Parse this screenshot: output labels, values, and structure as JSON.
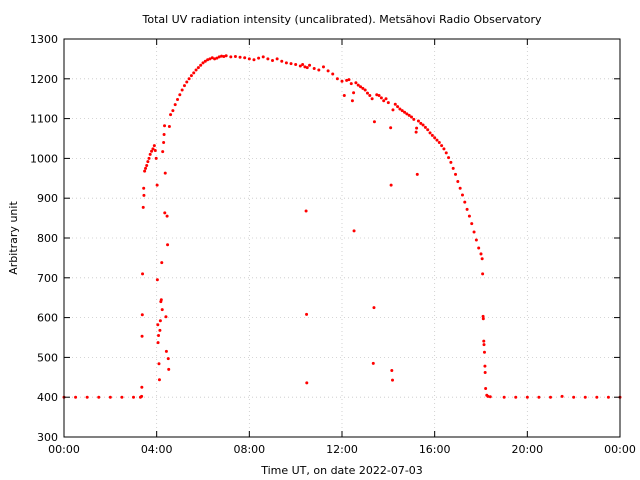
{
  "chart_data": {
    "type": "scatter",
    "title": "Total UV radiation intensity (uncalibrated). Metsähovi Radio Observatory",
    "xlabel": "Time UT, on date 2022-07-03",
    "ylabel": "Arbitrary unit",
    "xlim": [
      0,
      24
    ],
    "ylim": [
      300,
      1300
    ],
    "x_ticks": [
      {
        "value": 0,
        "label": "00:00"
      },
      {
        "value": 4,
        "label": "04:00"
      },
      {
        "value": 8,
        "label": "08:00"
      },
      {
        "value": 12,
        "label": "12:00"
      },
      {
        "value": 16,
        "label": "16:00"
      },
      {
        "value": 20,
        "label": "20:00"
      },
      {
        "value": 24,
        "label": "00:00"
      }
    ],
    "y_ticks": [
      300,
      400,
      500,
      600,
      700,
      800,
      900,
      1000,
      1100,
      1200,
      1300
    ],
    "grid": true,
    "point_color": "#ff0000",
    "x_units": "hours UT",
    "series": [
      {
        "points": [
          [
            0.0,
            400
          ],
          [
            0.5,
            400
          ],
          [
            1.0,
            400
          ],
          [
            1.5,
            400
          ],
          [
            2.0,
            400
          ],
          [
            2.5,
            400
          ],
          [
            3.0,
            400
          ],
          [
            3.3,
            400
          ],
          [
            3.35,
            402
          ],
          [
            3.36,
            425
          ],
          [
            3.37,
            553
          ],
          [
            3.38,
            607
          ],
          [
            3.39,
            710
          ],
          [
            3.42,
            877
          ],
          [
            3.44,
            925
          ],
          [
            3.45,
            907
          ],
          [
            3.48,
            968
          ],
          [
            3.52,
            975
          ],
          [
            3.57,
            982
          ],
          [
            3.62,
            992
          ],
          [
            3.67,
            1000
          ],
          [
            3.72,
            1010
          ],
          [
            3.78,
            1018
          ],
          [
            3.84,
            1024
          ],
          [
            3.9,
            1032
          ],
          [
            3.94,
            1020
          ],
          [
            3.98,
            1000
          ],
          [
            4.02,
            933
          ],
          [
            4.03,
            695
          ],
          [
            4.05,
            582
          ],
          [
            4.06,
            537
          ],
          [
            4.08,
            555
          ],
          [
            4.1,
            484
          ],
          [
            4.12,
            444
          ],
          [
            4.14,
            568
          ],
          [
            4.16,
            592
          ],
          [
            4.18,
            640
          ],
          [
            4.2,
            645
          ],
          [
            4.22,
            738
          ],
          [
            4.24,
            620
          ],
          [
            4.26,
            1017
          ],
          [
            4.3,
            1040
          ],
          [
            4.32,
            1060
          ],
          [
            4.34,
            1082
          ],
          [
            4.35,
            863
          ],
          [
            4.37,
            963
          ],
          [
            4.4,
            602
          ],
          [
            4.42,
            515
          ],
          [
            4.45,
            855
          ],
          [
            4.47,
            783
          ],
          [
            4.5,
            497
          ],
          [
            4.52,
            470
          ],
          [
            4.55,
            1080
          ],
          [
            4.6,
            1110
          ],
          [
            4.7,
            1120
          ],
          [
            4.8,
            1135
          ],
          [
            4.9,
            1148
          ],
          [
            5.0,
            1160
          ],
          [
            5.1,
            1172
          ],
          [
            5.2,
            1183
          ],
          [
            5.3,
            1192
          ],
          [
            5.4,
            1200
          ],
          [
            5.5,
            1208
          ],
          [
            5.6,
            1215
          ],
          [
            5.7,
            1222
          ],
          [
            5.8,
            1228
          ],
          [
            5.9,
            1234
          ],
          [
            6.0,
            1240
          ],
          [
            6.1,
            1244
          ],
          [
            6.2,
            1248
          ],
          [
            6.3,
            1250
          ],
          [
            6.4,
            1253
          ],
          [
            6.5,
            1250
          ],
          [
            6.6,
            1252
          ],
          [
            6.7,
            1255
          ],
          [
            6.8,
            1257
          ],
          [
            6.9,
            1256
          ],
          [
            7.0,
            1258
          ],
          [
            7.2,
            1255
          ],
          [
            7.4,
            1256
          ],
          [
            7.6,
            1254
          ],
          [
            7.8,
            1253
          ],
          [
            8.0,
            1250
          ],
          [
            8.2,
            1248
          ],
          [
            8.4,
            1252
          ],
          [
            8.6,
            1255
          ],
          [
            8.8,
            1250
          ],
          [
            9.0,
            1246
          ],
          [
            9.2,
            1250
          ],
          [
            9.4,
            1244
          ],
          [
            9.6,
            1240
          ],
          [
            9.8,
            1238
          ],
          [
            10.0,
            1236
          ],
          [
            10.2,
            1232
          ],
          [
            10.3,
            1236
          ],
          [
            10.4,
            1230
          ],
          [
            10.45,
            868
          ],
          [
            10.47,
            608
          ],
          [
            10.48,
            436
          ],
          [
            10.5,
            1228
          ],
          [
            10.6,
            1234
          ],
          [
            10.8,
            1226
          ],
          [
            11.0,
            1222
          ],
          [
            11.2,
            1230
          ],
          [
            11.4,
            1220
          ],
          [
            11.6,
            1212
          ],
          [
            11.8,
            1200
          ],
          [
            12.0,
            1194
          ],
          [
            12.1,
            1158
          ],
          [
            12.2,
            1196
          ],
          [
            12.3,
            1198
          ],
          [
            12.4,
            1188
          ],
          [
            12.45,
            1145
          ],
          [
            12.5,
            1165
          ],
          [
            12.52,
            818
          ],
          [
            12.6,
            1190
          ],
          [
            12.7,
            1184
          ],
          [
            12.8,
            1180
          ],
          [
            12.9,
            1176
          ],
          [
            13.0,
            1172
          ],
          [
            13.1,
            1164
          ],
          [
            13.2,
            1158
          ],
          [
            13.3,
            1150
          ],
          [
            13.35,
            485
          ],
          [
            13.38,
            625
          ],
          [
            13.4,
            1092
          ],
          [
            13.5,
            1160
          ],
          [
            13.6,
            1158
          ],
          [
            13.7,
            1152
          ],
          [
            13.8,
            1145
          ],
          [
            13.9,
            1150
          ],
          [
            14.0,
            1140
          ],
          [
            14.1,
            1077
          ],
          [
            14.12,
            933
          ],
          [
            14.15,
            467
          ],
          [
            14.18,
            443
          ],
          [
            14.2,
            1122
          ],
          [
            14.3,
            1136
          ],
          [
            14.4,
            1130
          ],
          [
            14.5,
            1124
          ],
          [
            14.6,
            1120
          ],
          [
            14.7,
            1116
          ],
          [
            14.8,
            1112
          ],
          [
            14.9,
            1108
          ],
          [
            15.0,
            1104
          ],
          [
            15.1,
            1098
          ],
          [
            15.2,
            1066
          ],
          [
            15.22,
            1076
          ],
          [
            15.25,
            960
          ],
          [
            15.3,
            1094
          ],
          [
            15.4,
            1088
          ],
          [
            15.5,
            1084
          ],
          [
            15.6,
            1078
          ],
          [
            15.7,
            1072
          ],
          [
            15.8,
            1064
          ],
          [
            15.9,
            1058
          ],
          [
            16.0,
            1052
          ],
          [
            16.1,
            1046
          ],
          [
            16.2,
            1040
          ],
          [
            16.3,
            1032
          ],
          [
            16.4,
            1024
          ],
          [
            16.5,
            1014
          ],
          [
            16.6,
            1002
          ],
          [
            16.7,
            990
          ],
          [
            16.8,
            975
          ],
          [
            16.9,
            960
          ],
          [
            17.0,
            942
          ],
          [
            17.1,
            925
          ],
          [
            17.2,
            908
          ],
          [
            17.3,
            890
          ],
          [
            17.4,
            872
          ],
          [
            17.5,
            855
          ],
          [
            17.6,
            836
          ],
          [
            17.7,
            815
          ],
          [
            17.8,
            795
          ],
          [
            17.9,
            775
          ],
          [
            18.0,
            760
          ],
          [
            18.05,
            748
          ],
          [
            18.07,
            710
          ],
          [
            18.09,
            603
          ],
          [
            18.1,
            597
          ],
          [
            18.12,
            541
          ],
          [
            18.13,
            532
          ],
          [
            18.15,
            513
          ],
          [
            18.17,
            478
          ],
          [
            18.18,
            462
          ],
          [
            18.2,
            422
          ],
          [
            18.25,
            405
          ],
          [
            18.3,
            402
          ],
          [
            18.4,
            401
          ],
          [
            19.0,
            400
          ],
          [
            19.5,
            400
          ],
          [
            20.0,
            400
          ],
          [
            20.5,
            400
          ],
          [
            21.0,
            400
          ],
          [
            21.5,
            402
          ],
          [
            22.0,
            400
          ],
          [
            22.5,
            400
          ],
          [
            23.0,
            400
          ],
          [
            23.5,
            400
          ],
          [
            24.0,
            400
          ]
        ]
      }
    ]
  }
}
